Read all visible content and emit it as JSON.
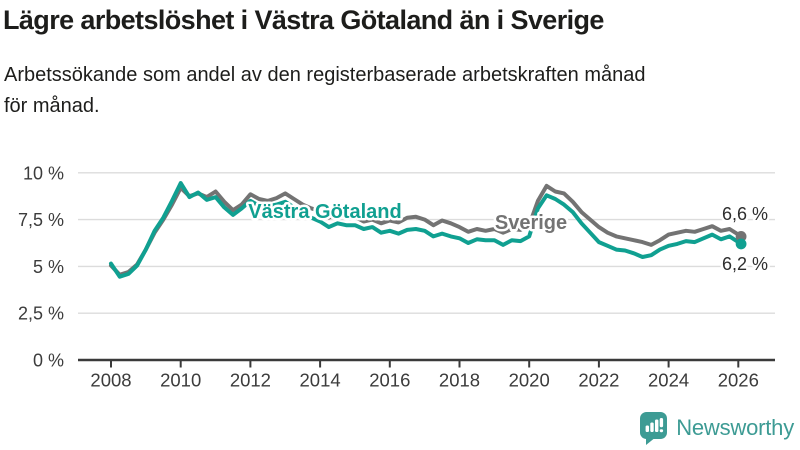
{
  "header": {
    "title": "Lägre arbetslöshet i Västra Götaland än i Sverige",
    "subtitle_lines": [
      "Arbetssökande som andel av den registerbaserade arbetskraften månad",
      "för månad."
    ]
  },
  "branding": {
    "logo_text": "Newsworthy",
    "logo_color": "#3d9b94",
    "logo_icon": "bar-chart-speech-bubble-icon"
  },
  "chart_data": {
    "type": "line",
    "title": "Lägre arbetslöshet i Västra Götaland än i Sverige",
    "xlabel": "",
    "ylabel": "",
    "x_range": [
      2008,
      2026.3
    ],
    "y_range": [
      0,
      10.5
    ],
    "grid": "horizontal",
    "legend_position": "inline-labels",
    "y_ticks": [
      {
        "label": "0 %",
        "value": 0
      },
      {
        "label": "2,5 %",
        "value": 2.5
      },
      {
        "label": "5 %",
        "value": 5
      },
      {
        "label": "7,5 %",
        "value": 7.5
      },
      {
        "label": "10 %",
        "value": 10
      }
    ],
    "x_ticks": [
      {
        "label": "2008",
        "year": 2008
      },
      {
        "label": "2010",
        "year": 2010
      },
      {
        "label": "2012",
        "year": 2012
      },
      {
        "label": "2014",
        "year": 2014
      },
      {
        "label": "2016",
        "year": 2016
      },
      {
        "label": "2018",
        "year": 2018
      },
      {
        "label": "2020",
        "year": 2020
      },
      {
        "label": "2022",
        "year": 2022
      },
      {
        "label": "2024",
        "year": 2024
      },
      {
        "label": "2026",
        "year": 2026
      }
    ],
    "x": [
      2008,
      2008.25,
      2008.5,
      2008.75,
      2009,
      2009.25,
      2009.5,
      2009.75,
      2010,
      2010.25,
      2010.5,
      2010.75,
      2011,
      2011.25,
      2011.5,
      2011.75,
      2012,
      2012.25,
      2012.5,
      2012.75,
      2013,
      2013.25,
      2013.5,
      2013.75,
      2014,
      2014.25,
      2014.5,
      2014.75,
      2015,
      2015.25,
      2015.5,
      2015.75,
      2016,
      2016.25,
      2016.5,
      2016.75,
      2017,
      2017.25,
      2017.5,
      2017.75,
      2018,
      2018.25,
      2018.5,
      2018.75,
      2019,
      2019.25,
      2019.5,
      2019.75,
      2020,
      2020.25,
      2020.5,
      2020.75,
      2021,
      2021.25,
      2021.5,
      2021.75,
      2022,
      2022.25,
      2022.5,
      2022.75,
      2023,
      2023.25,
      2023.5,
      2023.75,
      2024,
      2024.25,
      2024.5,
      2024.75,
      2025,
      2025.25,
      2025.5,
      2025.75,
      2026,
      2026.08
    ],
    "series": [
      {
        "name": "Sverige",
        "color": "#737373",
        "end_label": "6,6 %",
        "last_value": 6.6,
        "values": [
          5.05,
          4.55,
          4.7,
          5.1,
          5.9,
          6.8,
          7.5,
          8.3,
          9.2,
          8.75,
          8.9,
          8.7,
          9.0,
          8.45,
          8.0,
          8.3,
          8.85,
          8.6,
          8.5,
          8.65,
          8.9,
          8.6,
          8.3,
          8.1,
          7.95,
          7.6,
          7.8,
          7.65,
          7.65,
          7.4,
          7.5,
          7.3,
          7.45,
          7.35,
          7.6,
          7.65,
          7.5,
          7.2,
          7.45,
          7.3,
          7.1,
          6.85,
          7.0,
          6.9,
          7.0,
          6.8,
          7.0,
          6.95,
          7.2,
          8.5,
          9.3,
          9.0,
          8.9,
          8.45,
          7.9,
          7.5,
          7.1,
          6.8,
          6.6,
          6.5,
          6.4,
          6.3,
          6.15,
          6.4,
          6.7,
          6.8,
          6.9,
          6.85,
          7.0,
          7.15,
          6.9,
          7.0,
          6.7,
          6.6
        ]
      },
      {
        "name": "Västra Götaland",
        "color": "#10a091",
        "end_label": "6,2 %",
        "last_value": 6.2,
        "values": [
          5.15,
          4.45,
          4.6,
          5.05,
          5.9,
          6.9,
          7.6,
          8.5,
          9.45,
          8.7,
          8.95,
          8.55,
          8.7,
          8.15,
          7.75,
          8.1,
          8.5,
          8.25,
          8.2,
          8.3,
          8.45,
          8.15,
          7.85,
          7.6,
          7.4,
          7.1,
          7.3,
          7.2,
          7.2,
          7.0,
          7.1,
          6.8,
          6.9,
          6.75,
          6.95,
          7.0,
          6.9,
          6.6,
          6.75,
          6.6,
          6.5,
          6.25,
          6.45,
          6.4,
          6.4,
          6.15,
          6.4,
          6.35,
          6.6,
          8.1,
          8.8,
          8.6,
          8.3,
          7.9,
          7.3,
          6.8,
          6.3,
          6.1,
          5.9,
          5.85,
          5.7,
          5.5,
          5.6,
          5.9,
          6.1,
          6.2,
          6.35,
          6.3,
          6.5,
          6.7,
          6.45,
          6.6,
          6.3,
          6.2
        ]
      }
    ]
  }
}
